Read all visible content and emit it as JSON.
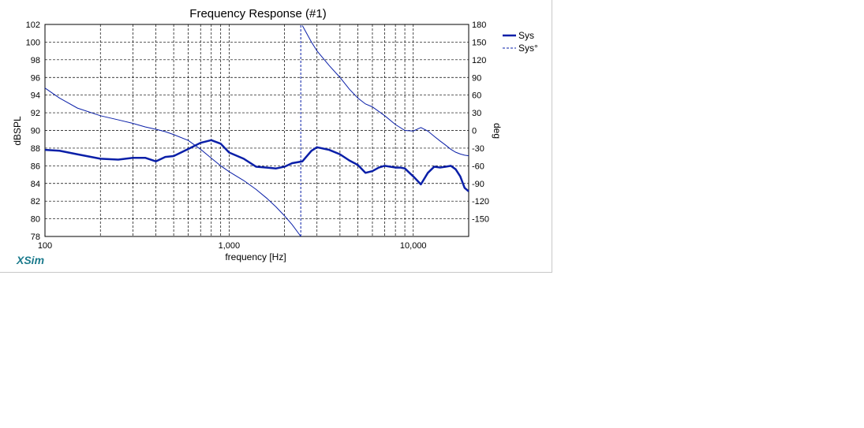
{
  "brand": "XSim",
  "colors": {
    "series": "#0a1fa8",
    "title": "#1a1ad0",
    "grid": "#000000"
  },
  "chart_data": {
    "type": "line",
    "title": "Frequency Response (#1)",
    "xlabel": "frequency [Hz]",
    "ylabel": "dBSPL",
    "y2label": "deg",
    "xscale": "log",
    "xlim": [
      100,
      20000
    ],
    "ylim": [
      78,
      102
    ],
    "y2lim": [
      -180,
      180
    ],
    "x_tick_labels": [
      "100",
      "1,000",
      "10,000"
    ],
    "x_tick_values": [
      100,
      1000,
      10000
    ],
    "y_ticks": [
      78,
      80,
      82,
      84,
      86,
      88,
      90,
      92,
      94,
      96,
      98,
      100,
      102
    ],
    "y2_ticks": [
      180,
      150,
      120,
      90,
      60,
      30,
      0,
      -30,
      -60,
      -90,
      -120,
      -150
    ],
    "grid": true,
    "legend": "right",
    "series": [
      {
        "name": "Sys",
        "axis": "left",
        "style": "solid-bold",
        "x": [
          100,
          120,
          150,
          200,
          250,
          300,
          350,
          400,
          450,
          500,
          600,
          700,
          800,
          900,
          1000,
          1200,
          1400,
          1600,
          1800,
          2000,
          2200,
          2500,
          2800,
          3000,
          3500,
          4000,
          4500,
          5000,
          5500,
          6000,
          6500,
          7000,
          7500,
          8000,
          8500,
          9000,
          10000,
          11000,
          12000,
          13000,
          14000,
          15000,
          16000,
          17000,
          18000,
          19000,
          20000
        ],
        "y": [
          87.8,
          87.7,
          87.3,
          86.8,
          86.7,
          86.9,
          86.9,
          86.5,
          87.0,
          87.1,
          87.9,
          88.6,
          88.9,
          88.5,
          87.5,
          86.8,
          85.9,
          85.8,
          85.7,
          85.9,
          86.3,
          86.5,
          87.7,
          88.1,
          87.8,
          87.3,
          86.6,
          86.1,
          85.2,
          85.4,
          85.8,
          86.0,
          85.9,
          85.8,
          85.8,
          85.7,
          84.8,
          83.9,
          85.2,
          85.9,
          85.8,
          85.9,
          86.0,
          85.6,
          84.8,
          83.5,
          83.1
        ]
      },
      {
        "name": "Sys°",
        "axis": "right",
        "style": "dashed",
        "x": [
          100,
          120,
          150,
          200,
          250,
          300,
          350,
          400,
          450,
          500,
          600,
          700,
          800,
          900,
          1000,
          1200,
          1400,
          1600,
          1800,
          2000,
          2200,
          2400,
          2450,
          2500,
          2800,
          3000,
          3500,
          4000,
          4500,
          5000,
          5500,
          6000,
          7000,
          8000,
          9000,
          10000,
          11000,
          12000,
          13000,
          14000,
          15000,
          16000,
          17000,
          18000,
          19000,
          20000
        ],
        "y": [
          72,
          55,
          38,
          25,
          18,
          12,
          6,
          2,
          -2,
          -7,
          -17,
          -32,
          -47,
          -60,
          -70,
          -85,
          -100,
          -115,
          -130,
          -145,
          -160,
          -176,
          -180,
          178,
          150,
          135,
          110,
          90,
          70,
          55,
          45,
          40,
          25,
          10,
          0,
          -1,
          5,
          -1,
          -10,
          -18,
          -25,
          -32,
          -37,
          -40,
          -42,
          -43
        ]
      }
    ]
  }
}
